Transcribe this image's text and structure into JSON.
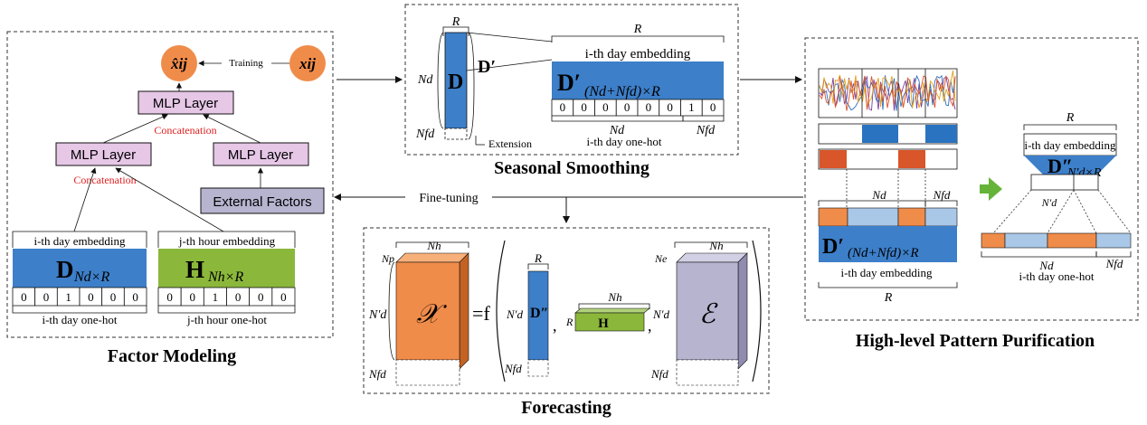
{
  "panels": {
    "factor_modeling": "Factor Modeling",
    "seasonal_smoothing": "Seasonal Smoothing",
    "high_level": "High-level Pattern Purification",
    "forecasting": "Forecasting"
  },
  "factor": {
    "x_hat": "x̂ij",
    "x": "xij",
    "training": "Training",
    "mlp_top": "MLP Layer",
    "mlp_left": "MLP Layer",
    "mlp_right": "MLP Layer",
    "concat_top": "Concatenation",
    "concat_left": "Concatenation",
    "external": "External Factors",
    "day_emb_label": "i-th day embedding",
    "hour_emb_label": "j-th hour embedding",
    "day_matrix": "D",
    "day_matrix_sub": "Nd×R",
    "hour_matrix": "H",
    "hour_matrix_sub": "Nh×R",
    "day_onehot": [
      "0",
      "0",
      "1",
      "0",
      "0",
      "0"
    ],
    "hour_onehot": [
      "0",
      "0",
      "1",
      "0",
      "0",
      "0"
    ],
    "day_onehot_label": "i-th day one-hot",
    "hour_onehot_label": "j-th hour one-hot"
  },
  "seasonal": {
    "R": "R",
    "Nd": "Nd",
    "Nfd": "Nfd",
    "D": "D",
    "Dprime": "D′",
    "extension": "Extension",
    "R_top": "R",
    "emb_label": "i-th day embedding",
    "big_matrix": "D′",
    "big_sub": "(Nd+Nfd)×R",
    "onehot": [
      "0",
      "0",
      "0",
      "0",
      "0",
      "0",
      "1",
      "0"
    ],
    "Nd_bottom": "Nd",
    "Nfd_bottom": "Nfd",
    "onehot_label": "i-th day one-hot"
  },
  "fine_tuning": "Fine-tuning",
  "high": {
    "Nd": "Nd",
    "Nfd": "Nfd",
    "matrix": "D′",
    "matrix_sub": "(Nd+Nfd)×R",
    "emb_label": "i-th day embedding",
    "R_bottom": "R",
    "R_top": "R",
    "trap_emb_label": "i-th day embedding",
    "trap_matrix": "D″",
    "trap_sub": "N′d×R",
    "Nprime_d": "N′d",
    "Nd_right": "Nd",
    "Nfd_right": "Nfd",
    "onehot_label": "i-th day one-hot"
  },
  "forecast": {
    "Nh": "Nh",
    "Nh2": "Nh",
    "Nh3": "Nh",
    "Np": "Np",
    "Ne": "Ne",
    "Nprime_d": "N′d",
    "Nfd": "Nfd",
    "X": "𝒳",
    "eq": "=f",
    "R": "R",
    "R2": "R",
    "D2": "D″",
    "H": "H",
    "E": "ℰ",
    "comma": ","
  },
  "colors": {
    "blue": "#3d7fc9",
    "light_blue": "#a9c8e8",
    "orange": "#f08c4a",
    "green": "#8bb73b",
    "purple_box": "#e6c7e6",
    "gray_box": "#b7b4d0",
    "red_text": "#e02020",
    "arrow_green": "#66b33a",
    "bar_orange": "#d9552a"
  }
}
